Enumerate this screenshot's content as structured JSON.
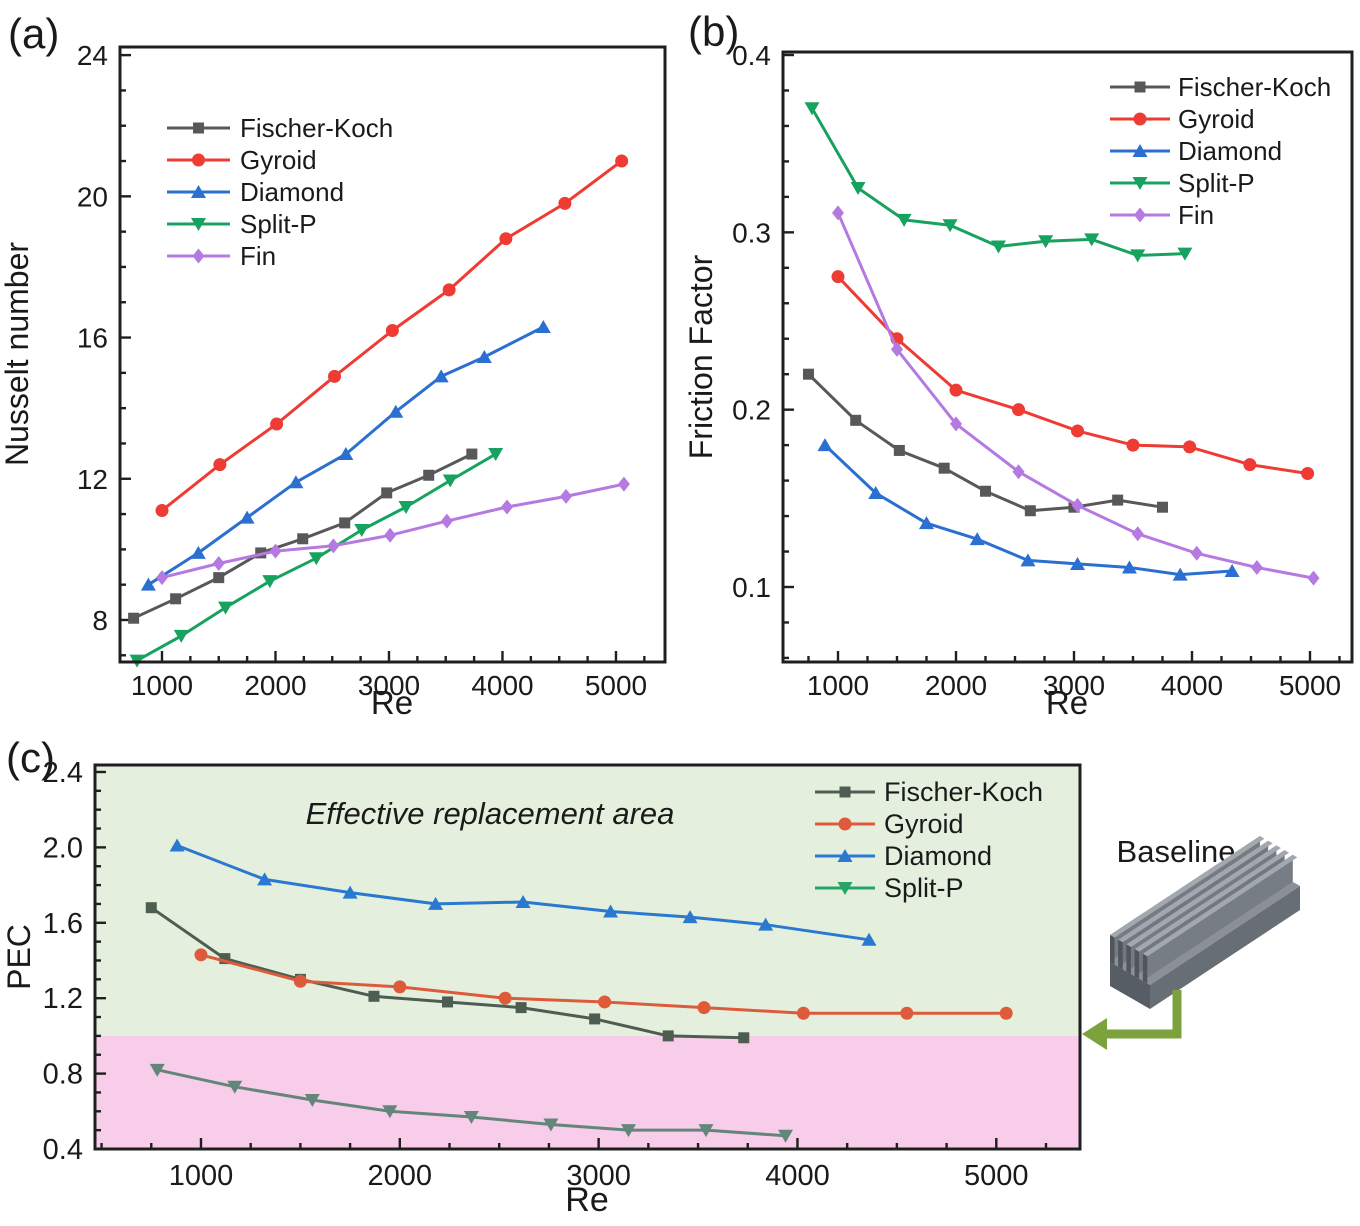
{
  "figure": {
    "panels": {
      "a": "(a)",
      "b": "(b)",
      "c": "(c)"
    },
    "baseline_label": "Baseline"
  },
  "chart_data": [
    {
      "id": "a",
      "type": "line",
      "title": "",
      "xlabel": "Re",
      "ylabel": "Nusselt number",
      "xlim": [
        630,
        5432
      ],
      "ylim": [
        6.81,
        24.23
      ],
      "xticks": [
        1000,
        2000,
        3000,
        4000,
        5000
      ],
      "xtick_labels": [
        "1000",
        "2000",
        "3000",
        "4000",
        "5000"
      ],
      "xminor_step": 250,
      "yticks": [
        8,
        12,
        16,
        20,
        24
      ],
      "ytick_labels": [
        "8",
        "12",
        "16",
        "20",
        "24"
      ],
      "yminor_step": 1,
      "grid": false,
      "legend_position": "upper-left-inside",
      "series": [
        {
          "name": "Fischer-Koch",
          "color": "#585858",
          "marker": "square",
          "x": [
            750,
            1120,
            1500,
            1870,
            2240,
            2610,
            2980,
            3350,
            3730
          ],
          "y": [
            8.05,
            8.6,
            9.2,
            9.9,
            10.3,
            10.75,
            11.6,
            12.1,
            12.7
          ]
        },
        {
          "name": "Gyroid",
          "color": "#ee3b33",
          "marker": "circle",
          "x": [
            1000,
            1510,
            2010,
            2520,
            3030,
            3530,
            4030,
            4550,
            5050
          ],
          "y": [
            11.1,
            12.4,
            13.55,
            14.9,
            16.2,
            17.35,
            18.8,
            19.8,
            21.0
          ]
        },
        {
          "name": "Diamond",
          "color": "#2b6fd0",
          "marker": "triangle-up",
          "x": [
            880,
            1320,
            1750,
            2180,
            2620,
            3060,
            3460,
            3840,
            4360
          ],
          "y": [
            9.0,
            9.9,
            10.9,
            11.9,
            12.7,
            13.9,
            14.9,
            15.45,
            16.3
          ]
        },
        {
          "name": "Split-P",
          "color": "#17a25f",
          "marker": "triangle-down",
          "x": [
            780,
            1170,
            1560,
            1950,
            2360,
            2760,
            3150,
            3540,
            3940
          ],
          "y": [
            6.85,
            7.55,
            8.35,
            9.1,
            9.75,
            10.55,
            11.2,
            11.95,
            12.7
          ]
        },
        {
          "name": "Fin",
          "color": "#b57ae2",
          "marker": "diamond",
          "x": [
            1000,
            1500,
            2000,
            2510,
            3010,
            3510,
            4040,
            4560,
            5070
          ],
          "y": [
            9.2,
            9.6,
            9.95,
            10.1,
            10.4,
            10.8,
            11.2,
            11.5,
            11.85
          ]
        }
      ]
    },
    {
      "id": "b",
      "type": "line",
      "title": "",
      "xlabel": "Re",
      "ylabel": "Friction Factor",
      "xlim": [
        534,
        5356
      ],
      "ylim": [
        0.0577,
        0.4017
      ],
      "xticks": [
        1000,
        2000,
        3000,
        4000,
        5000
      ],
      "xtick_labels": [
        "1000",
        "2000",
        "3000",
        "4000",
        "5000"
      ],
      "xminor_step": 250,
      "yticks": [
        0.1,
        0.2,
        0.3,
        0.4
      ],
      "ytick_labels": [
        "0.1",
        "0.2",
        "0.3",
        "0.4"
      ],
      "yminor_step": 0.02,
      "grid": false,
      "legend_position": "upper-right-inside",
      "series": [
        {
          "name": "Fischer-Koch",
          "color": "#585858",
          "marker": "square",
          "x": [
            750,
            1150,
            1520,
            1900,
            2250,
            2630,
            3000,
            3370,
            3750
          ],
          "y": [
            0.22,
            0.194,
            0.177,
            0.167,
            0.154,
            0.143,
            0.145,
            0.149,
            0.145
          ]
        },
        {
          "name": "Gyroid",
          "color": "#ee3b33",
          "marker": "circle",
          "x": [
            1000,
            1500,
            2000,
            2530,
            3030,
            3500,
            3980,
            4490,
            4980
          ],
          "y": [
            0.275,
            0.24,
            0.211,
            0.2,
            0.188,
            0.18,
            0.179,
            0.169,
            0.164
          ]
        },
        {
          "name": "Diamond",
          "color": "#2b6fd0",
          "marker": "triangle-up",
          "x": [
            890,
            1320,
            1750,
            2180,
            2610,
            3030,
            3470,
            3900,
            4340
          ],
          "y": [
            0.18,
            0.153,
            0.136,
            0.127,
            0.115,
            0.113,
            0.111,
            0.107,
            0.109
          ]
        },
        {
          "name": "Split-P",
          "color": "#17a25f",
          "marker": "triangle-down",
          "x": [
            780,
            1170,
            1560,
            1950,
            2360,
            2760,
            3150,
            3540,
            3940
          ],
          "y": [
            0.37,
            0.325,
            0.307,
            0.304,
            0.292,
            0.295,
            0.296,
            0.287,
            0.288
          ]
        },
        {
          "name": "Fin",
          "color": "#b57ae2",
          "marker": "diamond",
          "x": [
            1000,
            1500,
            2000,
            2530,
            3030,
            3540,
            4040,
            4550,
            5030
          ],
          "y": [
            0.311,
            0.234,
            0.192,
            0.165,
            0.146,
            0.13,
            0.119,
            0.111,
            0.105
          ]
        }
      ]
    },
    {
      "id": "c",
      "type": "line",
      "title": "",
      "xlabel": "Re",
      "ylabel": "PEC",
      "xlim": [
        467,
        5421
      ],
      "ylim": [
        0.4,
        2.437
      ],
      "xticks": [
        1000,
        2000,
        3000,
        4000,
        5000
      ],
      "xtick_labels": [
        "1000",
        "2000",
        "3000",
        "4000",
        "5000"
      ],
      "xminor_step": 250,
      "yticks": [
        0.4,
        0.8,
        1.2,
        1.6,
        2.0,
        2.4
      ],
      "ytick_labels": [
        "0.4",
        "0.8",
        "1.2",
        "1.6",
        "2.0",
        "2.4"
      ],
      "yminor_step": 0.1,
      "grid": false,
      "legend_position": "upper-right-inside",
      "annotation": {
        "text": "Effective replacement area",
        "color": "#4e8b49"
      },
      "regions": [
        {
          "name": "effective-zone",
          "from": 1.0,
          "to": 2.437,
          "color": "#e4f0dd"
        },
        {
          "name": "ineffective-zone",
          "from": 0.4,
          "to": 1.0,
          "color": "#f7cde9"
        }
      ],
      "baseline_level": 1.0,
      "series": [
        {
          "name": "Fischer-Koch",
          "color": "#4e5d52",
          "marker": "square",
          "x": [
            750,
            1120,
            1500,
            1870,
            2240,
            2610,
            2980,
            3350,
            3730
          ],
          "y": [
            1.68,
            1.41,
            1.3,
            1.21,
            1.18,
            1.15,
            1.09,
            1.0,
            0.99
          ]
        },
        {
          "name": "Gyroid",
          "color": "#dd5a3b",
          "marker": "circle",
          "x": [
            1000,
            1500,
            2000,
            2530,
            3030,
            3530,
            4030,
            4550,
            5050
          ],
          "y": [
            1.43,
            1.29,
            1.26,
            1.2,
            1.18,
            1.15,
            1.12,
            1.12,
            1.12
          ]
        },
        {
          "name": "Diamond",
          "color": "#2b78d1",
          "marker": "triangle-up",
          "x": [
            880,
            1320,
            1750,
            2180,
            2620,
            3060,
            3460,
            3840,
            4360
          ],
          "y": [
            2.01,
            1.83,
            1.76,
            1.7,
            1.71,
            1.66,
            1.63,
            1.59,
            1.51
          ]
        },
        {
          "name": "Split-P",
          "color": "#64867a",
          "legend_color": "#27a566",
          "marker": "triangle-down",
          "x": [
            780,
            1170,
            1560,
            1950,
            2360,
            2760,
            3150,
            3540,
            3940
          ],
          "y": [
            0.82,
            0.73,
            0.66,
            0.6,
            0.57,
            0.53,
            0.5,
            0.5,
            0.47
          ]
        }
      ]
    }
  ]
}
